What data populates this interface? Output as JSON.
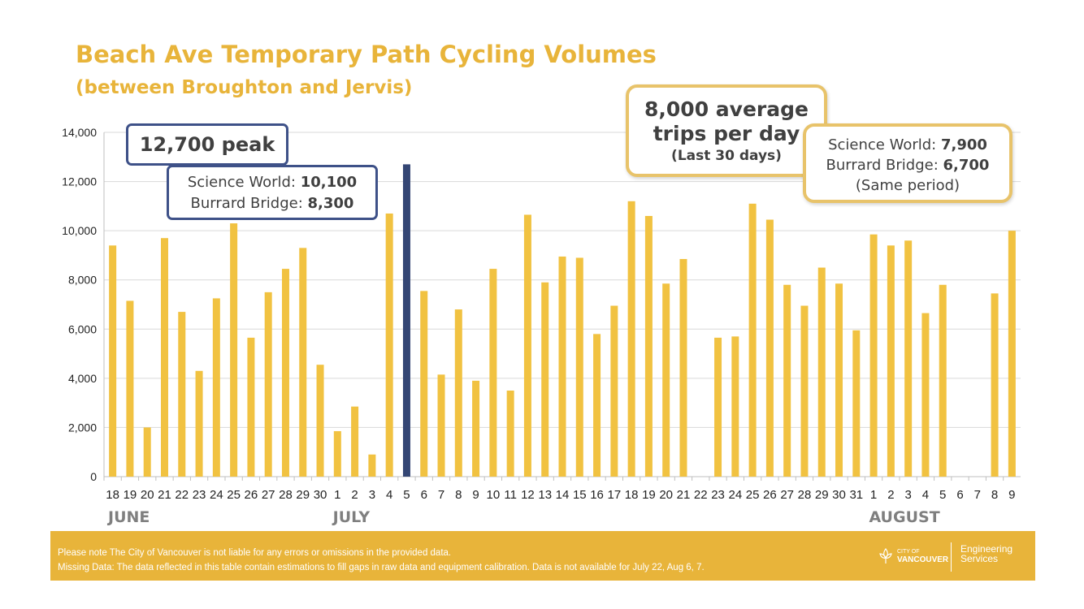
{
  "chart_data": {
    "type": "bar",
    "title": "Beach Ave Temporary Path Cycling Volumes",
    "subtitle": "(between Broughton and Jervis)",
    "xlabel": "",
    "ylabel": "",
    "ylim": [
      0,
      14000
    ],
    "yticks": [
      0,
      2000,
      4000,
      6000,
      8000,
      10000,
      12000,
      14000
    ],
    "ytick_labels": [
      "0",
      "2,000",
      "4,000",
      "6,000",
      "8,000",
      "10,000",
      "12,000",
      "14,000"
    ],
    "grid": true,
    "categories": [
      "18",
      "19",
      "20",
      "21",
      "22",
      "23",
      "24",
      "25",
      "26",
      "27",
      "28",
      "29",
      "30",
      "1",
      "2",
      "3",
      "4",
      "5",
      "6",
      "7",
      "8",
      "9",
      "10",
      "11",
      "12",
      "13",
      "14",
      "15",
      "16",
      "17",
      "18",
      "19",
      "20",
      "21",
      "22",
      "23",
      "24",
      "25",
      "26",
      "27",
      "28",
      "29",
      "30",
      "31",
      "1",
      "2",
      "3",
      "4",
      "5",
      "6",
      "7",
      "8",
      "9"
    ],
    "values": [
      9400,
      7150,
      2000,
      9700,
      6700,
      4300,
      7250,
      10300,
      5650,
      7500,
      8450,
      9300,
      4550,
      1850,
      2850,
      900,
      10700,
      12700,
      7550,
      4150,
      6800,
      3900,
      8450,
      3500,
      10650,
      7900,
      8950,
      8900,
      5800,
      6950,
      11200,
      10600,
      7850,
      8850,
      null,
      5650,
      5700,
      11100,
      10450,
      7800,
      6950,
      8500,
      7850,
      5950,
      9850,
      9400,
      9600,
      6650,
      7800,
      null,
      null,
      7450,
      10000
    ],
    "highlight_index": 17,
    "highlight_color": "#344674",
    "bar_color": "#f1c241",
    "month_labels": [
      {
        "label": "JUNE",
        "start_index": 0
      },
      {
        "label": "JULY",
        "start_index": 13
      },
      {
        "label": "AUGUST",
        "start_index": 44
      }
    ],
    "annotations": {
      "peak": {
        "headline": "12,700 peak",
        "science_world_label": "Science World: ",
        "science_world_value": "10,100",
        "burrard_label": "Burrard Bridge: ",
        "burrard_value": "8,300"
      },
      "average": {
        "line1": "8,000 average",
        "line2": "trips per day",
        "line3": "(Last 30 days)",
        "science_world_label": "Science World: ",
        "science_world_value": "7,900",
        "burrard_label": "Burrard Bridge: ",
        "burrard_value": "6,700",
        "period": "(Same period)"
      }
    }
  },
  "colors": {
    "accent": "#e8b43a",
    "peak_border": "#3e5188",
    "avg_border": "#e8c36a",
    "text": "#404040",
    "month": "#7f7f7f"
  },
  "footer": {
    "line1": "Please note The City of Vancouver is not liable for any errors or omissions in the provided data.",
    "line2": "Missing Data: The data reflected in this table contain estimations to fill gaps in raw data and equipment  calibration. Data is not available for July 22, Aug 6, 7.",
    "logo_small": "CITY OF",
    "logo_big": "VANCOUVER",
    "dept_line1": "Engineering",
    "dept_line2": "Services"
  }
}
